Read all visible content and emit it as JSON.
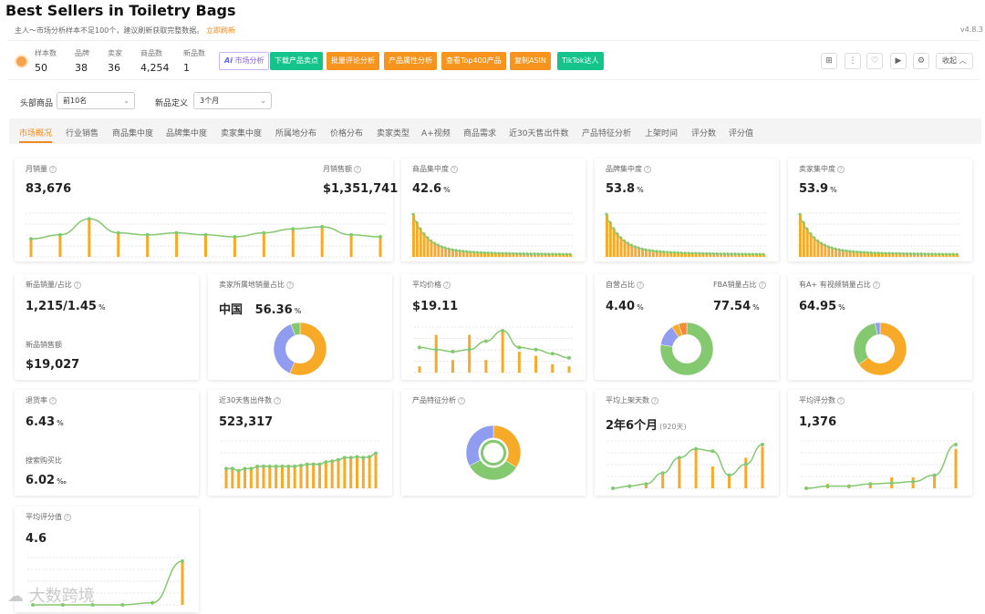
{
  "page": {
    "title": "Best Sellers in Toiletry Bags",
    "notice": "主人～市场分析样本不足100个，建议刷新获取完整数据。",
    "notice_link": "立即刷新",
    "version": "v4.8.3"
  },
  "stats": [
    {
      "label": "样本数",
      "value": "50"
    },
    {
      "label": "品牌",
      "value": "38"
    },
    {
      "label": "卖家",
      "value": "36"
    },
    {
      "label": "商品数",
      "value": "4,254"
    },
    {
      "label": "新品数",
      "value": "1"
    }
  ],
  "buttons": {
    "ai_prefix": "Ai",
    "ai_label": "市场分析",
    "export": "下载产品卖点",
    "reviews": "批量评论分析",
    "attributes": "产品属性分析",
    "top400": "查看Top400产品",
    "copy_asin": "复制ASIN",
    "tiktok": "TikTok达人",
    "collapse": "收起"
  },
  "toolbar_icons": [
    "grid-icon",
    "more-icon",
    "heart-icon",
    "video-icon",
    "settings-icon"
  ],
  "filters": {
    "head_label": "头部商品",
    "head_value": "前10名",
    "new_label": "新品定义",
    "new_value": "3个月"
  },
  "tabs": [
    "市场概况",
    "行业销售",
    "商品集中度",
    "品牌集中度",
    "卖家集中度",
    "所属地分布",
    "价格分布",
    "卖家类型",
    "A+视频",
    "商品需求",
    "近30天售出件数",
    "产品特征分析",
    "上架时间",
    "评分数",
    "评分值"
  ],
  "cards": {
    "monthly_sales": {
      "label": "月销量",
      "value": "83,676",
      "label2": "月销售额",
      "value2": "$1,351,741"
    },
    "product_conc": {
      "label": "商品集中度",
      "value": "42.6",
      "unit": "%"
    },
    "brand_conc": {
      "label": "品牌集中度",
      "value": "53.8",
      "unit": "%"
    },
    "seller_conc": {
      "label": "卖家集中度",
      "value": "53.9",
      "unit": "%"
    },
    "new_sales": {
      "label": "新品销量/占比",
      "value": "1,215/1.45",
      "unit": "%",
      "label2": "新品销售额",
      "value2": "$19,027"
    },
    "seller_origin": {
      "label": "卖家所属地销量占比",
      "value": "中国",
      "value_b": "56.36",
      "unit": "%"
    },
    "avg_price": {
      "label": "平均价格",
      "value": "$19.11"
    },
    "self_fba": {
      "label": "自营占比",
      "value": "4.40",
      "unit": "%",
      "label2": "FBA销量占比",
      "value2": "77.54",
      "unit2": "%"
    },
    "aplus": {
      "label": "有A+ 有视频销量占比",
      "value": "64.95",
      "unit": "%"
    },
    "return_rate": {
      "label": "退货率",
      "value": "6.43",
      "unit": "%",
      "label2": "搜索购买比",
      "value2": "6.02",
      "unit2": "‰"
    },
    "sold30": {
      "label": "近30天售出件数",
      "value": "523,317"
    },
    "features": {
      "label": "产品特征分析"
    },
    "listing_days": {
      "label": "平均上架天数",
      "value": "2年6个月",
      "sub": "(920天)"
    },
    "review_count": {
      "label": "平均评分数",
      "value": "1,376"
    },
    "rating": {
      "label": "平均评分值",
      "value": "4.6"
    }
  },
  "chart_data": [
    {
      "name": "monthly-sales",
      "type": "line",
      "bars": [
        0.45,
        0.55,
        0.95,
        0.6,
        0.55,
        0.6,
        0.55,
        0.5,
        0.6,
        0.7,
        0.75,
        0.55,
        0.5
      ],
      "line": [
        0.45,
        0.55,
        0.95,
        0.6,
        0.55,
        0.6,
        0.55,
        0.5,
        0.6,
        0.7,
        0.75,
        0.55,
        0.5
      ]
    },
    {
      "name": "product-concentration",
      "type": "bar",
      "decay": true
    },
    {
      "name": "brand-concentration",
      "type": "bar",
      "decay": true
    },
    {
      "name": "seller-concentration",
      "type": "bar",
      "decay": true
    },
    {
      "name": "seller-origin",
      "type": "pie",
      "slices": [
        {
          "value": 56.36,
          "color": "#f7a928"
        },
        {
          "value": 38,
          "color": "#8f9cf0"
        },
        {
          "value": 5.64,
          "color": "#84c96f"
        }
      ]
    },
    {
      "name": "avg-price",
      "type": "line",
      "bars": [
        0.15,
        0.9,
        0.3,
        0.9,
        0.3,
        1.0,
        0.5,
        0.4,
        0.2,
        0.15
      ],
      "line": [
        0.6,
        0.55,
        0.5,
        0.55,
        0.75,
        1.0,
        0.6,
        0.55,
        0.45,
        0.35
      ]
    },
    {
      "name": "self-fba",
      "type": "pie",
      "slices": [
        {
          "value": 77.54,
          "color": "#84c96f"
        },
        {
          "value": 13,
          "color": "#8f9cf0"
        },
        {
          "value": 4.4,
          "color": "#f7a928"
        },
        {
          "value": 5.06,
          "color": "#f08a3c"
        }
      ]
    },
    {
      "name": "aplus",
      "type": "pie",
      "slices": [
        {
          "value": 64.95,
          "color": "#f7a928"
        },
        {
          "value": 32,
          "color": "#84c96f"
        },
        {
          "value": 3.05,
          "color": "#8f9cf0"
        }
      ]
    },
    {
      "name": "sold30",
      "type": "line",
      "bars": [
        0.45,
        0.45,
        0.4,
        0.45,
        0.45,
        0.5,
        0.5,
        0.5,
        0.5,
        0.5,
        0.5,
        0.5,
        0.52,
        0.55,
        0.55,
        0.55,
        0.6,
        0.62,
        0.65,
        0.7,
        0.7,
        0.72,
        0.7,
        0.72,
        0.8
      ],
      "line": [
        0.45,
        0.45,
        0.4,
        0.45,
        0.45,
        0.5,
        0.5,
        0.5,
        0.5,
        0.5,
        0.5,
        0.5,
        0.52,
        0.55,
        0.55,
        0.55,
        0.6,
        0.62,
        0.65,
        0.7,
        0.7,
        0.72,
        0.7,
        0.72,
        0.8
      ]
    },
    {
      "name": "features",
      "type": "pie",
      "slices": [
        {
          "value": 34,
          "color": "#f7a928"
        },
        {
          "value": 33,
          "color": "#84c96f"
        },
        {
          "value": 33,
          "color": "#8f9cf0"
        }
      ]
    },
    {
      "name": "listing-days",
      "type": "line",
      "bars": [
        0.0,
        0.0,
        0.1,
        0.35,
        0.7,
        0.9,
        0.5,
        0.3,
        0.7,
        0.95
      ],
      "line": [
        0.0,
        0.05,
        0.1,
        0.35,
        0.7,
        0.9,
        0.85,
        0.3,
        0.55,
        1.0
      ]
    },
    {
      "name": "review-count",
      "type": "line",
      "bars": [
        0.0,
        0.1,
        0.05,
        0.1,
        0.25,
        0.25,
        0.3,
        0.9
      ],
      "line": [
        0.0,
        0.05,
        0.05,
        0.1,
        0.12,
        0.15,
        0.3,
        1.0
      ]
    },
    {
      "name": "rating",
      "type": "line",
      "bars": [
        0.0,
        0.0,
        0.0,
        0.0,
        0.0,
        1.0
      ],
      "line": [
        0.0,
        0.0,
        0.0,
        0.0,
        0.05,
        1.0
      ]
    }
  ],
  "watermark": "大数跨境"
}
